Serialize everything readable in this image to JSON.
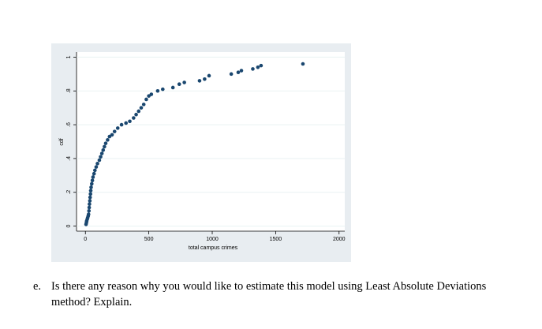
{
  "chart_data": {
    "type": "scatter",
    "x_label": "total campus crimes",
    "y_label": "cdf",
    "color": "#1a476f",
    "grid": true,
    "x": [
      5,
      8,
      10,
      14,
      18,
      22,
      25,
      28,
      30,
      32,
      35,
      37,
      40,
      42,
      45,
      50,
      55,
      60,
      68,
      75,
      85,
      95,
      110,
      120,
      130,
      140,
      150,
      160,
      175,
      190,
      210,
      230,
      255,
      285,
      320,
      350,
      380,
      400,
      420,
      440,
      460,
      480,
      500,
      520,
      570,
      610,
      690,
      740,
      780,
      900,
      940,
      975,
      1150,
      1205,
      1230,
      1320,
      1360,
      1385,
      1715
    ],
    "values": [
      0.01,
      0.02,
      0.03,
      0.04,
      0.05,
      0.06,
      0.07,
      0.09,
      0.11,
      0.13,
      0.15,
      0.17,
      0.19,
      0.21,
      0.23,
      0.25,
      0.27,
      0.29,
      0.31,
      0.33,
      0.35,
      0.37,
      0.39,
      0.41,
      0.43,
      0.45,
      0.47,
      0.49,
      0.51,
      0.53,
      0.54,
      0.56,
      0.58,
      0.6,
      0.61,
      0.62,
      0.64,
      0.66,
      0.68,
      0.7,
      0.72,
      0.75,
      0.77,
      0.78,
      0.8,
      0.81,
      0.82,
      0.84,
      0.85,
      0.86,
      0.87,
      0.89,
      0.9,
      0.91,
      0.92,
      0.93,
      0.94,
      0.95,
      0.96
    ],
    "xlim": [
      -70,
      2045
    ],
    "xticks": [
      0,
      500,
      1000,
      1500,
      2000
    ],
    "ylim": [
      -0.03,
      1.03
    ],
    "yticks": [
      0,
      {
        "value": 0.2,
        "label": ".2"
      },
      {
        "value": 0.4,
        "label": ".4"
      },
      {
        "value": 0.6,
        "label": ".6"
      },
      {
        "value": 0.8,
        "label": ".8"
      },
      1
    ]
  },
  "question": {
    "label": "e.",
    "lines": [
      "Is there any reason why you would like to estimate this model using Least Absolute Deviations",
      "method? Explain."
    ]
  }
}
